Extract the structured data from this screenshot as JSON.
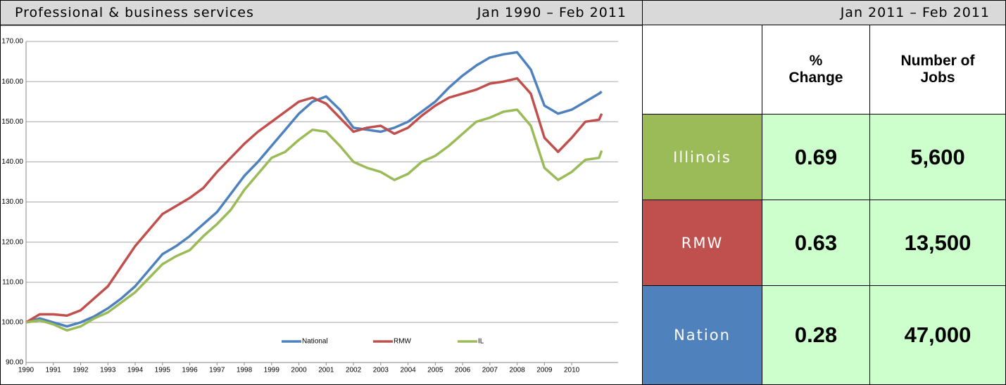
{
  "header": {
    "title": "Professional & business services",
    "range": "Jan 1990 – Feb 2011",
    "period": "Jan 2011 – Feb 2011"
  },
  "chart_data": {
    "type": "line",
    "x": [
      1990,
      1990.5,
      1991,
      1991.5,
      1992,
      1992.5,
      1993,
      1993.5,
      1994,
      1994.5,
      1995,
      1995.5,
      1996,
      1996.5,
      1997,
      1997.5,
      1998,
      1998.5,
      1999,
      1999.5,
      2000,
      2000.5,
      2001,
      2001.5,
      2002,
      2002.5,
      2003,
      2003.5,
      2004,
      2004.5,
      2005,
      2005.5,
      2006,
      2006.5,
      2007,
      2007.5,
      2008,
      2008.5,
      2009,
      2009.5,
      2010,
      2010.5,
      2011,
      2011.1
    ],
    "series": [
      {
        "name": "National",
        "color": "#4f81bd",
        "values": [
          100,
          101,
          100,
          99,
          100,
          101.5,
          103.5,
          106,
          109,
          113,
          117,
          119,
          121.5,
          124.5,
          127.5,
          132,
          136.5,
          140,
          144,
          148,
          152,
          155,
          156.3,
          153,
          148.5,
          148,
          147.5,
          148.5,
          150,
          152.5,
          155,
          158.5,
          161.5,
          164,
          166,
          166.8,
          167.3,
          163,
          154,
          152,
          153,
          155,
          157,
          157.5
        ]
      },
      {
        "name": "RMW",
        "color": "#c0504d",
        "values": [
          100,
          102,
          102,
          101.7,
          103,
          106,
          109,
          114,
          119,
          123,
          127,
          129,
          131,
          133.5,
          137.5,
          141,
          144.5,
          147.5,
          150,
          152.5,
          155,
          156,
          154.5,
          151,
          147.5,
          148.5,
          149,
          147,
          148.5,
          151.5,
          154,
          156,
          157,
          158,
          159.5,
          160,
          160.8,
          157,
          146,
          142.5,
          146,
          150,
          150.5,
          152
        ]
      },
      {
        "name": "IL",
        "color": "#9bbb59",
        "values": [
          100,
          100.5,
          99.5,
          98,
          99,
          101,
          102.5,
          105,
          107.5,
          111,
          114.5,
          116.5,
          118,
          121.5,
          124.5,
          128,
          133,
          137,
          141,
          142.5,
          145.5,
          148,
          147.5,
          144,
          140,
          138.5,
          137.5,
          135.5,
          137,
          140,
          141.5,
          144,
          147,
          150,
          151,
          152.5,
          153,
          149,
          138.5,
          135.5,
          137.5,
          140.5,
          141,
          142.8
        ]
      }
    ],
    "xlim": [
      1990,
      2011.7
    ],
    "xticks": [
      1990,
      1991,
      1992,
      1993,
      1994,
      1995,
      1996,
      1997,
      1998,
      1999,
      2000,
      2001,
      2002,
      2003,
      2004,
      2005,
      2006,
      2007,
      2008,
      2009,
      2010
    ],
    "ylim": [
      90,
      170
    ],
    "yticks": [
      {
        "value": 90,
        "label": "90.00"
      },
      {
        "value": 100,
        "label": "100.00"
      },
      {
        "value": 110,
        "label": "110.00"
      },
      {
        "value": 120,
        "label": "120.00"
      },
      {
        "value": 130,
        "label": "130.00"
      },
      {
        "value": 140,
        "label": "140.00"
      },
      {
        "value": 150,
        "label": "150.00"
      },
      {
        "value": 160,
        "label": "160.00"
      },
      {
        "value": 170,
        "label": "170.00"
      }
    ],
    "grid": true
  },
  "table": {
    "columns": [
      "% Change",
      "Number of Jobs"
    ],
    "rows": [
      [
        "Illinois",
        "0.69",
        "5,600"
      ],
      [
        "RMW",
        "0.63",
        "13,500"
      ],
      [
        "Nation",
        "0.28",
        "47,000"
      ]
    ],
    "row_colors": [
      "#9bbb59",
      "#c0504d",
      "#4f81bd"
    ]
  }
}
